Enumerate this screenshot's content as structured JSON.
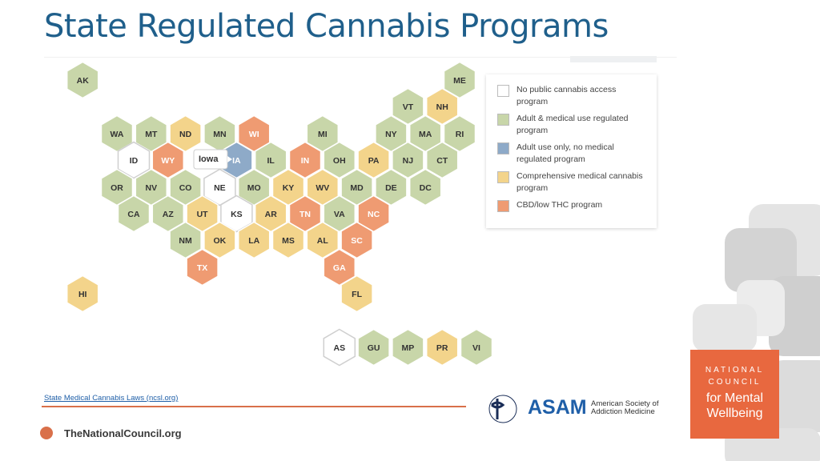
{
  "title": "State Regulated Cannabis Programs",
  "legend": [
    {
      "label": "No public cannabis access program",
      "color": "#ffffff"
    },
    {
      "label": "Adult & medical use regulated program",
      "color": "#c8d6a9"
    },
    {
      "label": "Adult use only, no medical regulated program",
      "color": "#8eaac8"
    },
    {
      "label": "Comprehensive medical cannabis program",
      "color": "#f3d48b"
    },
    {
      "label": "CBD/low THC program",
      "color": "#ef9b72"
    }
  ],
  "states": [
    {
      "label": "AK",
      "color": "#c8d6a9"
    },
    {
      "label": "ME",
      "color": "#c8d6a9"
    },
    {
      "label": "VT",
      "color": "#c8d6a9"
    },
    {
      "label": "NH",
      "color": "#f3d48b"
    },
    {
      "label": "WA",
      "color": "#c8d6a9"
    },
    {
      "label": "MT",
      "color": "#c8d6a9"
    },
    {
      "label": "ND",
      "color": "#f3d48b"
    },
    {
      "label": "MN",
      "color": "#c8d6a9"
    },
    {
      "label": "WI",
      "color": "#ef9b72"
    },
    {
      "label": "MI",
      "color": "#c8d6a9"
    },
    {
      "label": "NY",
      "color": "#c8d6a9"
    },
    {
      "label": "MA",
      "color": "#c8d6a9"
    },
    {
      "label": "RI",
      "color": "#c8d6a9"
    },
    {
      "label": "ID",
      "color": "#ffffff"
    },
    {
      "label": "WY",
      "color": "#ef9b72"
    },
    {
      "label": "IA",
      "color": "#8eaac8"
    },
    {
      "label": "IL",
      "color": "#c8d6a9"
    },
    {
      "label": "IN",
      "color": "#ef9b72"
    },
    {
      "label": "OH",
      "color": "#c8d6a9"
    },
    {
      "label": "PA",
      "color": "#f3d48b"
    },
    {
      "label": "NJ",
      "color": "#c8d6a9"
    },
    {
      "label": "CT",
      "color": "#c8d6a9"
    },
    {
      "label": "OR",
      "color": "#c8d6a9"
    },
    {
      "label": "NV",
      "color": "#c8d6a9"
    },
    {
      "label": "CO",
      "color": "#c8d6a9"
    },
    {
      "label": "NE",
      "color": "#ffffff"
    },
    {
      "label": "MO",
      "color": "#c8d6a9"
    },
    {
      "label": "KY",
      "color": "#f3d48b"
    },
    {
      "label": "WV",
      "color": "#f3d48b"
    },
    {
      "label": "MD",
      "color": "#c8d6a9"
    },
    {
      "label": "DE",
      "color": "#c8d6a9"
    },
    {
      "label": "DC",
      "color": "#c8d6a9"
    },
    {
      "label": "CA",
      "color": "#c8d6a9"
    },
    {
      "label": "AZ",
      "color": "#c8d6a9"
    },
    {
      "label": "UT",
      "color": "#f3d48b"
    },
    {
      "label": "KS",
      "color": "#ffffff"
    },
    {
      "label": "AR",
      "color": "#f3d48b"
    },
    {
      "label": "TN",
      "color": "#ef9b72"
    },
    {
      "label": "VA",
      "color": "#c8d6a9"
    },
    {
      "label": "NC",
      "color": "#ef9b72"
    },
    {
      "label": "NM",
      "color": "#c8d6a9"
    },
    {
      "label": "OK",
      "color": "#f3d48b"
    },
    {
      "label": "LA",
      "color": "#f3d48b"
    },
    {
      "label": "MS",
      "color": "#f3d48b"
    },
    {
      "label": "AL",
      "color": "#f3d48b"
    },
    {
      "label": "SC",
      "color": "#ef9b72"
    },
    {
      "label": "TX",
      "color": "#ef9b72"
    },
    {
      "label": "GA",
      "color": "#ef9b72"
    },
    {
      "label": "HI",
      "color": "#f3d48b"
    },
    {
      "label": "FL",
      "color": "#f3d48b"
    },
    {
      "label": "AS",
      "color": "#ffffff"
    },
    {
      "label": "GU",
      "color": "#c8d6a9"
    },
    {
      "label": "MP",
      "color": "#c8d6a9"
    },
    {
      "label": "PR",
      "color": "#f3d48b"
    },
    {
      "label": "VI",
      "color": "#c8d6a9"
    }
  ],
  "tooltip": "Iowa",
  "source": "State Medical Cannabis Laws (ncsl.org)",
  "footer": {
    "site": "TheNationalCouncil.org",
    "asam": "ASAM",
    "asam_line1": "American Society of",
    "asam_line2": "Addiction Medicine",
    "logo": [
      "NATIONAL",
      "COUNCIL",
      "for Mental",
      "Wellbeing"
    ]
  }
}
